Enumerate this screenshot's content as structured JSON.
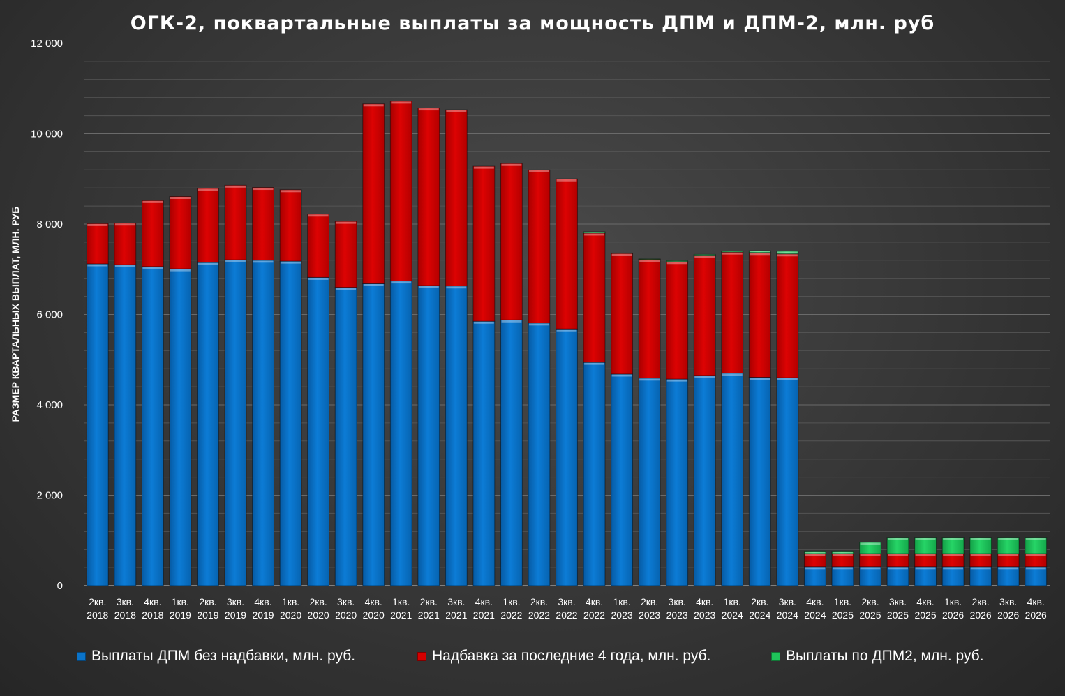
{
  "chart_data": {
    "type": "bar",
    "stacked": true,
    "title": "ОГК-2, поквартальные выплаты за мощность ДПМ и ДПМ-2, млн. руб",
    "xlabel": "",
    "ylabel": "РАЗМЕР КВАРТАЛЬНЫХ ВЫПЛАТ, МЛН. РУБ",
    "ylim": [
      0,
      12000
    ],
    "yticks": [
      0,
      2000,
      4000,
      6000,
      8000,
      10000,
      12000
    ],
    "ytick_labels": [
      "0",
      "2 000",
      "4 000",
      "6 000",
      "8 000",
      "10 000",
      "12 000"
    ],
    "grid": true,
    "legend_position": "bottom",
    "categories": [
      [
        "2кв.",
        "2018"
      ],
      [
        "3кв.",
        "2018"
      ],
      [
        "4кв.",
        "2018"
      ],
      [
        "1кв.",
        "2019"
      ],
      [
        "2кв.",
        "2019"
      ],
      [
        "3кв.",
        "2019"
      ],
      [
        "4кв.",
        "2019"
      ],
      [
        "1кв.",
        "2020"
      ],
      [
        "2кв.",
        "2020"
      ],
      [
        "3кв.",
        "2020"
      ],
      [
        "4кв.",
        "2020"
      ],
      [
        "1кв.",
        "2021"
      ],
      [
        "2кв.",
        "2021"
      ],
      [
        "3кв.",
        "2021"
      ],
      [
        "4кв.",
        "2021"
      ],
      [
        "1кв.",
        "2022"
      ],
      [
        "2кв.",
        "2022"
      ],
      [
        "3кв.",
        "2022"
      ],
      [
        "4кв.",
        "2022"
      ],
      [
        "1кв.",
        "2023"
      ],
      [
        "2кв.",
        "2023"
      ],
      [
        "3кв.",
        "2023"
      ],
      [
        "4кв.",
        "2023"
      ],
      [
        "1кв.",
        "2024"
      ],
      [
        "2кв.",
        "2024"
      ],
      [
        "3кв.",
        "2024"
      ],
      [
        "4кв.",
        "2024"
      ],
      [
        "1кв.",
        "2025"
      ],
      [
        "2кв.",
        "2025"
      ],
      [
        "3кв.",
        "2025"
      ],
      [
        "4кв.",
        "2025"
      ],
      [
        "1кв.",
        "2026"
      ],
      [
        "2кв.",
        "2026"
      ],
      [
        "3кв.",
        "2026"
      ],
      [
        "4кв.",
        "2026"
      ]
    ],
    "series": [
      {
        "name": "Выплаты ДПМ без надбавки, млн. руб.",
        "color": "#0a73c9",
        "values": [
          7120,
          7100,
          7060,
          7010,
          7150,
          7210,
          7200,
          7180,
          6820,
          6600,
          6680,
          6740,
          6640,
          6630,
          5850,
          5880,
          5810,
          5680,
          4940,
          4680,
          4590,
          4570,
          4650,
          4700,
          4610,
          4600,
          420,
          420,
          420,
          420,
          420,
          420,
          420,
          420,
          420
        ]
      },
      {
        "name": "Надбавка за последние 4 года, млн. руб.",
        "color": "#d40000",
        "values": [
          890,
          920,
          1460,
          1600,
          1640,
          1650,
          1610,
          1580,
          1400,
          1460,
          3980,
          3980,
          3930,
          3900,
          3430,
          3460,
          3390,
          3320,
          2860,
          2670,
          2630,
          2600,
          2660,
          2680,
          2760,
          2740,
          290,
          290,
          290,
          290,
          290,
          290,
          290,
          290,
          290
        ]
      },
      {
        "name": "Выплаты по ДПМ2, млн. руб.",
        "color": "#1fc45a",
        "values": [
          0,
          0,
          0,
          0,
          0,
          0,
          0,
          0,
          0,
          0,
          0,
          0,
          0,
          0,
          0,
          0,
          0,
          0,
          30,
          10,
          10,
          20,
          20,
          20,
          40,
          60,
          40,
          40,
          250,
          360,
          360,
          360,
          360,
          360,
          360
        ]
      }
    ]
  }
}
